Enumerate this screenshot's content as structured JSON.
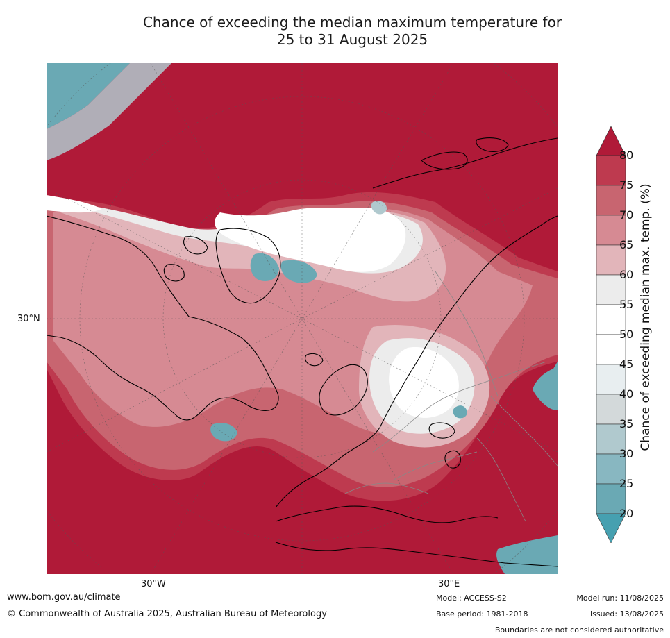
{
  "title": {
    "line1": "Chance of exceeding the median maximum temperature for",
    "line2": "25 to 31 August 2025"
  },
  "axis_labels": {
    "lat_30n": "30°N",
    "lon_30w": "30°W",
    "lon_30e": "30°E"
  },
  "colorbar": {
    "title": "Chance of exceeding median max. temp. (%)",
    "ticks": [
      "80",
      "75",
      "70",
      "65",
      "60",
      "55",
      "50",
      "45",
      "40",
      "35",
      "30",
      "25",
      "20"
    ],
    "colors": {
      "above_80": "#b01a38",
      "75_80": "#be3a4f",
      "70_75": "#c86570",
      "65_70": "#d68a93",
      "60_65": "#e2b5ba",
      "55_60": "#ececec",
      "50_55": "#ffffff",
      "45_50": "#ffffff",
      "40_45": "#e8eef0",
      "35_40": "#d3d9da",
      "30_35": "#b0c9ce",
      "25_30": "#88b7c1",
      "20_25": "#6aa9b4",
      "below_20": "#46a0b0"
    }
  },
  "footer": {
    "website": "www.bom.gov.au/climate",
    "copyright": "© Commonwealth of Australia 2025, Australian Bureau of Meteorology",
    "model": "Model: ACCESS-S2",
    "base_period": "Base period: 1981-2018",
    "model_run": "Model run: 11/08/2025",
    "issued": "Issued: 13/08/2025",
    "disclaimer": "Boundaries are not considered authoritative"
  }
}
